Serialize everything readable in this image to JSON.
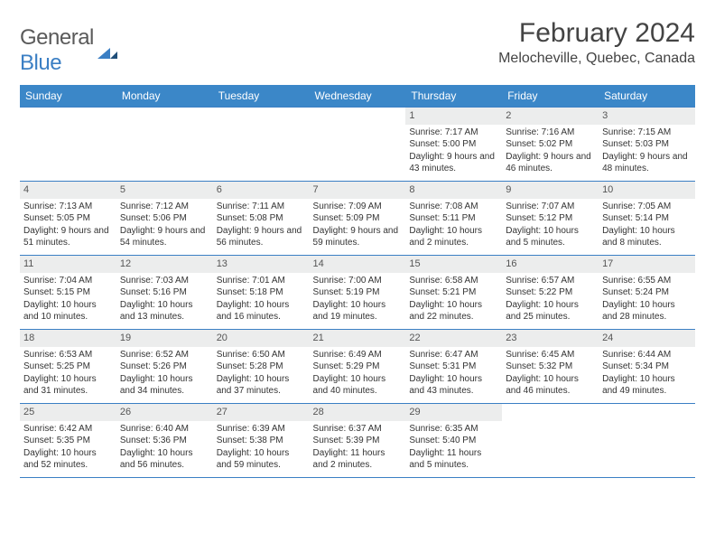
{
  "logo": {
    "text_a": "General",
    "text_b": "Blue"
  },
  "title": "February 2024",
  "location": "Melocheville, Quebec, Canada",
  "colors": {
    "header_bg": "#3b87c8",
    "header_text": "#ffffff",
    "daynum_bg": "#eceded",
    "border": "#3b7fc4",
    "body_text": "#333333"
  },
  "day_headers": [
    "Sunday",
    "Monday",
    "Tuesday",
    "Wednesday",
    "Thursday",
    "Friday",
    "Saturday"
  ],
  "weeks": [
    [
      null,
      null,
      null,
      null,
      {
        "n": "1",
        "sr": "7:17 AM",
        "ss": "5:00 PM",
        "dl": "9 hours and 43 minutes."
      },
      {
        "n": "2",
        "sr": "7:16 AM",
        "ss": "5:02 PM",
        "dl": "9 hours and 46 minutes."
      },
      {
        "n": "3",
        "sr": "7:15 AM",
        "ss": "5:03 PM",
        "dl": "9 hours and 48 minutes."
      }
    ],
    [
      {
        "n": "4",
        "sr": "7:13 AM",
        "ss": "5:05 PM",
        "dl": "9 hours and 51 minutes."
      },
      {
        "n": "5",
        "sr": "7:12 AM",
        "ss": "5:06 PM",
        "dl": "9 hours and 54 minutes."
      },
      {
        "n": "6",
        "sr": "7:11 AM",
        "ss": "5:08 PM",
        "dl": "9 hours and 56 minutes."
      },
      {
        "n": "7",
        "sr": "7:09 AM",
        "ss": "5:09 PM",
        "dl": "9 hours and 59 minutes."
      },
      {
        "n": "8",
        "sr": "7:08 AM",
        "ss": "5:11 PM",
        "dl": "10 hours and 2 minutes."
      },
      {
        "n": "9",
        "sr": "7:07 AM",
        "ss": "5:12 PM",
        "dl": "10 hours and 5 minutes."
      },
      {
        "n": "10",
        "sr": "7:05 AM",
        "ss": "5:14 PM",
        "dl": "10 hours and 8 minutes."
      }
    ],
    [
      {
        "n": "11",
        "sr": "7:04 AM",
        "ss": "5:15 PM",
        "dl": "10 hours and 10 minutes."
      },
      {
        "n": "12",
        "sr": "7:03 AM",
        "ss": "5:16 PM",
        "dl": "10 hours and 13 minutes."
      },
      {
        "n": "13",
        "sr": "7:01 AM",
        "ss": "5:18 PM",
        "dl": "10 hours and 16 minutes."
      },
      {
        "n": "14",
        "sr": "7:00 AM",
        "ss": "5:19 PM",
        "dl": "10 hours and 19 minutes."
      },
      {
        "n": "15",
        "sr": "6:58 AM",
        "ss": "5:21 PM",
        "dl": "10 hours and 22 minutes."
      },
      {
        "n": "16",
        "sr": "6:57 AM",
        "ss": "5:22 PM",
        "dl": "10 hours and 25 minutes."
      },
      {
        "n": "17",
        "sr": "6:55 AM",
        "ss": "5:24 PM",
        "dl": "10 hours and 28 minutes."
      }
    ],
    [
      {
        "n": "18",
        "sr": "6:53 AM",
        "ss": "5:25 PM",
        "dl": "10 hours and 31 minutes."
      },
      {
        "n": "19",
        "sr": "6:52 AM",
        "ss": "5:26 PM",
        "dl": "10 hours and 34 minutes."
      },
      {
        "n": "20",
        "sr": "6:50 AM",
        "ss": "5:28 PM",
        "dl": "10 hours and 37 minutes."
      },
      {
        "n": "21",
        "sr": "6:49 AM",
        "ss": "5:29 PM",
        "dl": "10 hours and 40 minutes."
      },
      {
        "n": "22",
        "sr": "6:47 AM",
        "ss": "5:31 PM",
        "dl": "10 hours and 43 minutes."
      },
      {
        "n": "23",
        "sr": "6:45 AM",
        "ss": "5:32 PM",
        "dl": "10 hours and 46 minutes."
      },
      {
        "n": "24",
        "sr": "6:44 AM",
        "ss": "5:34 PM",
        "dl": "10 hours and 49 minutes."
      }
    ],
    [
      {
        "n": "25",
        "sr": "6:42 AM",
        "ss": "5:35 PM",
        "dl": "10 hours and 52 minutes."
      },
      {
        "n": "26",
        "sr": "6:40 AM",
        "ss": "5:36 PM",
        "dl": "10 hours and 56 minutes."
      },
      {
        "n": "27",
        "sr": "6:39 AM",
        "ss": "5:38 PM",
        "dl": "10 hours and 59 minutes."
      },
      {
        "n": "28",
        "sr": "6:37 AM",
        "ss": "5:39 PM",
        "dl": "11 hours and 2 minutes."
      },
      {
        "n": "29",
        "sr": "6:35 AM",
        "ss": "5:40 PM",
        "dl": "11 hours and 5 minutes."
      },
      null,
      null
    ]
  ],
  "labels": {
    "sunrise": "Sunrise:",
    "sunset": "Sunset:",
    "daylight": "Daylight:"
  }
}
